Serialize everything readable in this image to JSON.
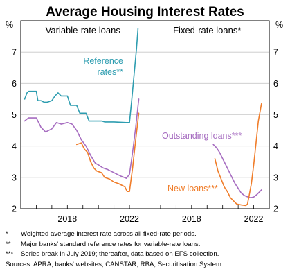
{
  "chart_data": {
    "type": "line",
    "title": "Average Housing Interest Rates",
    "y_unit": "%",
    "ylim": [
      2,
      8
    ],
    "y_ticks": [
      "2",
      "3",
      "4",
      "5",
      "6",
      "7"
    ],
    "panels": [
      {
        "title": "Variable-rate loans",
        "xlim": [
          2015.0,
          2023.0
        ],
        "x_ticks": [
          {
            "value": 2018,
            "label": "2018"
          },
          {
            "value": 2022,
            "label": "2022"
          }
        ],
        "series": [
          {
            "name": "Reference rates**",
            "color": "#2E9DB0",
            "points": [
              [
                2015.25,
                5.5
              ],
              [
                2015.4,
                5.7
              ],
              [
                2015.5,
                5.75
              ],
              [
                2016.0,
                5.75
              ],
              [
                2016.1,
                5.45
              ],
              [
                2016.3,
                5.45
              ],
              [
                2016.5,
                5.4
              ],
              [
                2016.7,
                5.4
              ],
              [
                2017.0,
                5.45
              ],
              [
                2017.2,
                5.6
              ],
              [
                2017.4,
                5.7
              ],
              [
                2017.6,
                5.6
              ],
              [
                2018.0,
                5.6
              ],
              [
                2018.2,
                5.3
              ],
              [
                2018.6,
                5.3
              ],
              [
                2018.8,
                5.05
              ],
              [
                2019.2,
                5.05
              ],
              [
                2019.4,
                4.8
              ],
              [
                2019.8,
                4.8
              ],
              [
                2020.2,
                4.8
              ],
              [
                2020.4,
                4.77
              ],
              [
                2021.0,
                4.77
              ],
              [
                2021.8,
                4.75
              ],
              [
                2022.0,
                4.75
              ],
              [
                2022.15,
                5.5
              ],
              [
                2022.3,
                6.3
              ],
              [
                2022.45,
                7.1
              ],
              [
                2022.55,
                7.75
              ]
            ]
          },
          {
            "name": "Outstanding loans***",
            "color": "#A66CC0",
            "points": [
              [
                2015.25,
                4.8
              ],
              [
                2015.5,
                4.9
              ],
              [
                2016.0,
                4.9
              ],
              [
                2016.3,
                4.6
              ],
              [
                2016.6,
                4.45
              ],
              [
                2017.0,
                4.55
              ],
              [
                2017.3,
                4.75
              ],
              [
                2017.6,
                4.7
              ],
              [
                2018.0,
                4.75
              ],
              [
                2018.3,
                4.7
              ],
              [
                2018.6,
                4.5
              ],
              [
                2018.9,
                4.2
              ],
              [
                2019.2,
                4.0
              ],
              [
                2019.5,
                3.7
              ],
              [
                2019.8,
                3.45
              ],
              [
                2020.0,
                3.4
              ],
              [
                2020.3,
                3.3
              ],
              [
                2020.6,
                3.25
              ],
              [
                2021.0,
                3.15
              ],
              [
                2021.4,
                3.05
              ],
              [
                2021.8,
                2.97
              ],
              [
                2022.0,
                3.1
              ],
              [
                2022.2,
                3.8
              ],
              [
                2022.4,
                4.6
              ],
              [
                2022.6,
                5.5
              ]
            ]
          },
          {
            "name": "New loans***",
            "color": "#F07D2A",
            "points": [
              [
                2018.6,
                4.05
              ],
              [
                2018.9,
                4.1
              ],
              [
                2019.1,
                3.9
              ],
              [
                2019.3,
                3.8
              ],
              [
                2019.5,
                3.5
              ],
              [
                2019.7,
                3.3
              ],
              [
                2019.9,
                3.2
              ],
              [
                2020.2,
                3.15
              ],
              [
                2020.4,
                3.0
              ],
              [
                2020.7,
                2.95
              ],
              [
                2021.0,
                2.85
              ],
              [
                2021.3,
                2.8
              ],
              [
                2021.5,
                2.75
              ],
              [
                2021.7,
                2.7
              ],
              [
                2021.85,
                2.55
              ],
              [
                2022.0,
                2.55
              ],
              [
                2022.2,
                3.3
              ],
              [
                2022.4,
                4.2
              ],
              [
                2022.6,
                5.05
              ]
            ]
          }
        ],
        "annotations": [
          {
            "text": "Reference",
            "color": "#2E9DB0"
          },
          {
            "text": "rates**",
            "color": "#2E9DB0"
          }
        ]
      },
      {
        "title": "Fixed-rate loans*",
        "xlim": [
          2015.0,
          2023.0
        ],
        "x_ticks": [
          {
            "value": 2018,
            "label": "2018"
          },
          {
            "value": 2022,
            "label": "2022"
          }
        ],
        "series": [
          {
            "name": "Outstanding loans***",
            "color": "#A66CC0",
            "points": [
              [
                2019.4,
                4.05
              ],
              [
                2019.6,
                3.95
              ],
              [
                2019.8,
                3.8
              ],
              [
                2020.0,
                3.6
              ],
              [
                2020.2,
                3.4
              ],
              [
                2020.4,
                3.2
              ],
              [
                2020.6,
                3.0
              ],
              [
                2020.8,
                2.8
              ],
              [
                2021.0,
                2.65
              ],
              [
                2021.2,
                2.5
              ],
              [
                2021.4,
                2.42
              ],
              [
                2021.6,
                2.38
              ],
              [
                2021.8,
                2.35
              ],
              [
                2022.0,
                2.37
              ],
              [
                2022.2,
                2.45
              ],
              [
                2022.4,
                2.55
              ],
              [
                2022.5,
                2.6
              ]
            ]
          },
          {
            "name": "New loans***",
            "color": "#F07D2A",
            "points": [
              [
                2019.5,
                3.6
              ],
              [
                2019.7,
                3.2
              ],
              [
                2019.9,
                2.95
              ],
              [
                2020.1,
                2.7
              ],
              [
                2020.3,
                2.55
              ],
              [
                2020.5,
                2.35
              ],
              [
                2020.7,
                2.25
              ],
              [
                2020.9,
                2.15
              ],
              [
                2021.2,
                2.12
              ],
              [
                2021.5,
                2.1
              ],
              [
                2021.6,
                2.15
              ],
              [
                2021.7,
                2.4
              ],
              [
                2021.85,
                2.8
              ],
              [
                2022.0,
                3.4
              ],
              [
                2022.15,
                4.1
              ],
              [
                2022.3,
                4.8
              ],
              [
                2022.5,
                5.35
              ]
            ]
          }
        ],
        "annotations": [
          {
            "text": "Outstanding loans***",
            "color": "#A66CC0"
          },
          {
            "text": "New loans***",
            "color": "#F07D2A"
          }
        ]
      }
    ]
  },
  "notes": [
    {
      "mark": "*",
      "text": "Weighted average interest rate across all fixed-rate periods."
    },
    {
      "mark": "**",
      "text": "Major banks' standard reference rates for variable-rate loans."
    },
    {
      "mark": "***",
      "text": "Series break in July 2019; thereafter, data based on EFS collection."
    }
  ],
  "sources": "Sources: APRA; banks' websites; CANSTAR; RBA; Securitisation System"
}
